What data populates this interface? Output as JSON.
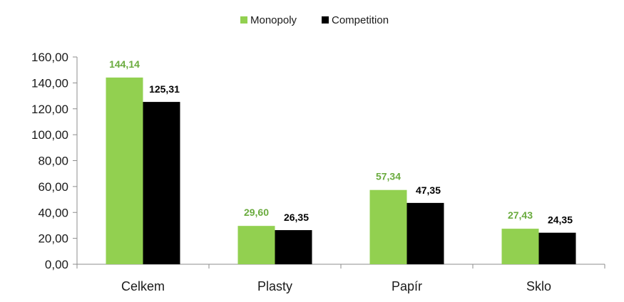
{
  "chart_data": {
    "type": "bar",
    "title": "",
    "xlabel": "",
    "ylabel": "",
    "categories": [
      "Celkem",
      "Plasty",
      "Papír",
      "Sklo"
    ],
    "series": [
      {
        "name": "Monopoly",
        "color": "#92d050",
        "label_color": "#6aab3e",
        "values": [
          144.14,
          29.6,
          57.34,
          27.43
        ],
        "labels": [
          "144,14",
          "29,60",
          "57,34",
          "27,43"
        ]
      },
      {
        "name": "Competition",
        "color": "#000000",
        "label_color": "#000000",
        "values": [
          125.31,
          26.35,
          47.35,
          24.35
        ],
        "labels": [
          "125,31",
          "26,35",
          "47,35",
          "24,35"
        ]
      }
    ],
    "ylim": [
      0,
      160
    ],
    "yticks": [
      0,
      20,
      40,
      60,
      80,
      100,
      120,
      140,
      160
    ],
    "ytick_labels": [
      "0,00",
      "20,00",
      "40,00",
      "60,00",
      "80,00",
      "100,00",
      "120,00",
      "140,00",
      "160,00"
    ],
    "grid": false,
    "legend_position": "top-center"
  }
}
